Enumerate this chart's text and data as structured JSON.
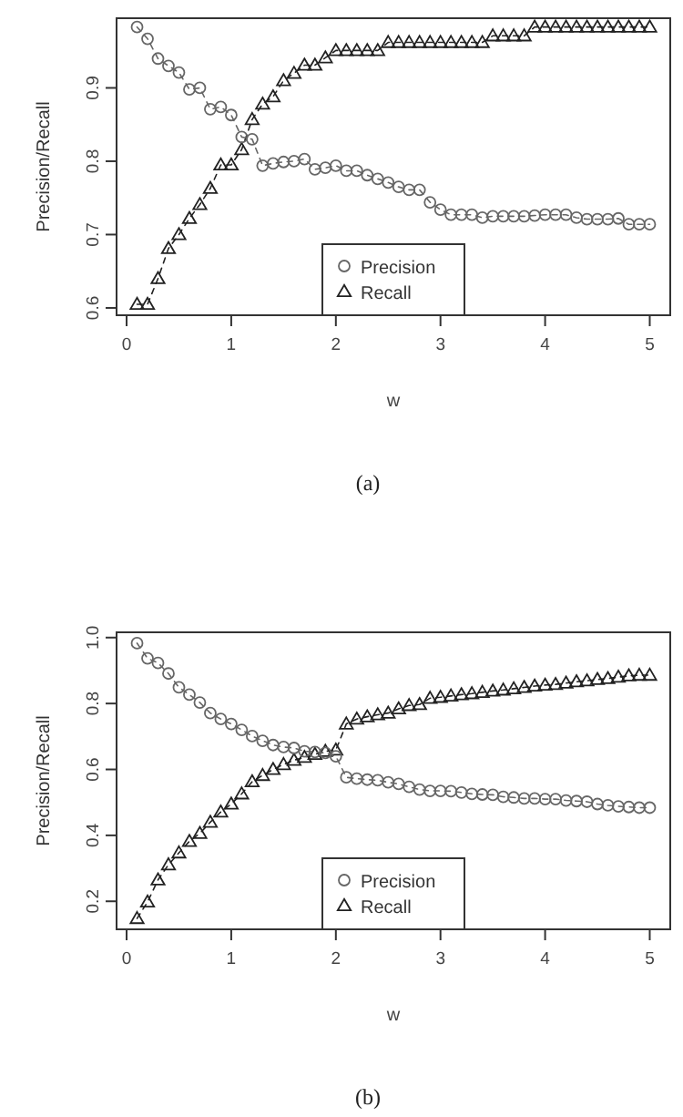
{
  "chart_data": [
    {
      "type": "line",
      "xlabel": "w",
      "ylabel": "Precision/Recall",
      "annotations": [
        "(a)"
      ],
      "legend": "bottom",
      "line_style": "dashed",
      "x": [
        0.1,
        0.2,
        0.3,
        0.4,
        0.5,
        0.6,
        0.7,
        0.8,
        0.9,
        1.0,
        1.1,
        1.2,
        1.3,
        1.4,
        1.5,
        1.6,
        1.7,
        1.8,
        1.9,
        2.0,
        2.1,
        2.2,
        2.3,
        2.4,
        2.5,
        2.6,
        2.7,
        2.8,
        2.9,
        3.0,
        3.1,
        3.2,
        3.3,
        3.4,
        3.5,
        3.6,
        3.7,
        3.8,
        3.9,
        4.0,
        4.1,
        4.2,
        4.3,
        4.4,
        4.5,
        4.6,
        4.7,
        4.8,
        4.9,
        5.0
      ],
      "xlim": [
        -0.096,
        5.196
      ],
      "xticks": [
        0,
        1,
        2,
        3,
        4,
        5
      ],
      "ylim": [
        0.59,
        0.995
      ],
      "yticks": [
        0.6,
        0.7,
        0.8,
        0.9
      ],
      "series": [
        {
          "name": "Precision",
          "color": "#666666",
          "marker": "circle",
          "values": [
            0.983,
            0.967,
            0.94,
            0.93,
            0.921,
            0.898,
            0.9,
            0.871,
            0.874,
            0.863,
            0.833,
            0.83,
            0.794,
            0.797,
            0.799,
            0.8,
            0.803,
            0.789,
            0.791,
            0.794,
            0.787,
            0.787,
            0.781,
            0.776,
            0.771,
            0.765,
            0.761,
            0.761,
            0.744,
            0.734,
            0.727,
            0.727,
            0.727,
            0.723,
            0.725,
            0.725,
            0.725,
            0.725,
            0.726,
            0.727,
            0.727,
            0.727,
            0.723,
            0.721,
            0.721,
            0.721,
            0.722,
            0.714,
            0.714,
            0.714
          ]
        },
        {
          "name": "Recall",
          "color": "#222222",
          "marker": "triangle",
          "values": [
            0.605,
            0.605,
            0.64,
            0.681,
            0.7,
            0.722,
            0.741,
            0.763,
            0.795,
            0.795,
            0.816,
            0.857,
            0.878,
            0.888,
            0.91,
            0.92,
            0.931,
            0.931,
            0.941,
            0.951,
            0.951,
            0.951,
            0.951,
            0.951,
            0.962,
            0.962,
            0.962,
            0.962,
            0.962,
            0.962,
            0.962,
            0.962,
            0.962,
            0.962,
            0.971,
            0.971,
            0.971,
            0.971,
            0.983,
            0.983,
            0.983,
            0.983,
            0.983,
            0.983,
            0.983,
            0.983,
            0.983,
            0.983,
            0.983,
            0.983
          ]
        }
      ]
    },
    {
      "type": "line",
      "xlabel": "w",
      "ylabel": "Precision/Recall",
      "annotations": [
        "(b)"
      ],
      "legend": "bottom",
      "line_style": "dashed",
      "x": [
        0.1,
        0.2,
        0.3,
        0.4,
        0.5,
        0.6,
        0.7,
        0.8,
        0.9,
        1.0,
        1.1,
        1.2,
        1.3,
        1.4,
        1.5,
        1.6,
        1.7,
        1.8,
        1.9,
        2.0,
        2.1,
        2.2,
        2.3,
        2.4,
        2.5,
        2.6,
        2.7,
        2.8,
        2.9,
        3.0,
        3.1,
        3.2,
        3.3,
        3.4,
        3.5,
        3.6,
        3.7,
        3.8,
        3.9,
        4.0,
        4.1,
        4.2,
        4.3,
        4.4,
        4.5,
        4.6,
        4.7,
        4.8,
        4.9,
        5.0
      ],
      "xlim": [
        -0.096,
        5.196
      ],
      "xticks": [
        0,
        1,
        2,
        3,
        4,
        5
      ],
      "ylim": [
        0.115,
        1.016
      ],
      "yticks": [
        0.2,
        0.4,
        0.6,
        0.8,
        {
          "value": 1,
          "label": "1.0"
        }
      ],
      "series": [
        {
          "name": "Precision",
          "color": "#666666",
          "marker": "circle",
          "values": [
            0.983,
            0.937,
            0.923,
            0.891,
            0.849,
            0.827,
            0.803,
            0.771,
            0.753,
            0.738,
            0.72,
            0.701,
            0.687,
            0.674,
            0.668,
            0.665,
            0.655,
            0.653,
            0.65,
            0.64,
            0.576,
            0.572,
            0.569,
            0.567,
            0.561,
            0.556,
            0.547,
            0.539,
            0.535,
            0.535,
            0.534,
            0.53,
            0.526,
            0.524,
            0.523,
            0.517,
            0.515,
            0.512,
            0.512,
            0.51,
            0.51,
            0.506,
            0.504,
            0.502,
            0.495,
            0.491,
            0.488,
            0.486,
            0.484,
            0.484
          ]
        },
        {
          "name": "Recall",
          "color": "#222222",
          "marker": "triangle",
          "values": [
            0.148,
            0.198,
            0.265,
            0.311,
            0.347,
            0.382,
            0.406,
            0.44,
            0.471,
            0.495,
            0.526,
            0.563,
            0.582,
            0.6,
            0.615,
            0.628,
            0.637,
            0.646,
            0.655,
            0.659,
            0.738,
            0.753,
            0.76,
            0.766,
            0.771,
            0.784,
            0.794,
            0.797,
            0.816,
            0.819,
            0.823,
            0.827,
            0.83,
            0.834,
            0.838,
            0.841,
            0.845,
            0.849,
            0.853,
            0.856,
            0.858,
            0.862,
            0.866,
            0.869,
            0.873,
            0.876,
            0.88,
            0.884,
            0.886,
            0.886
          ]
        }
      ]
    }
  ]
}
